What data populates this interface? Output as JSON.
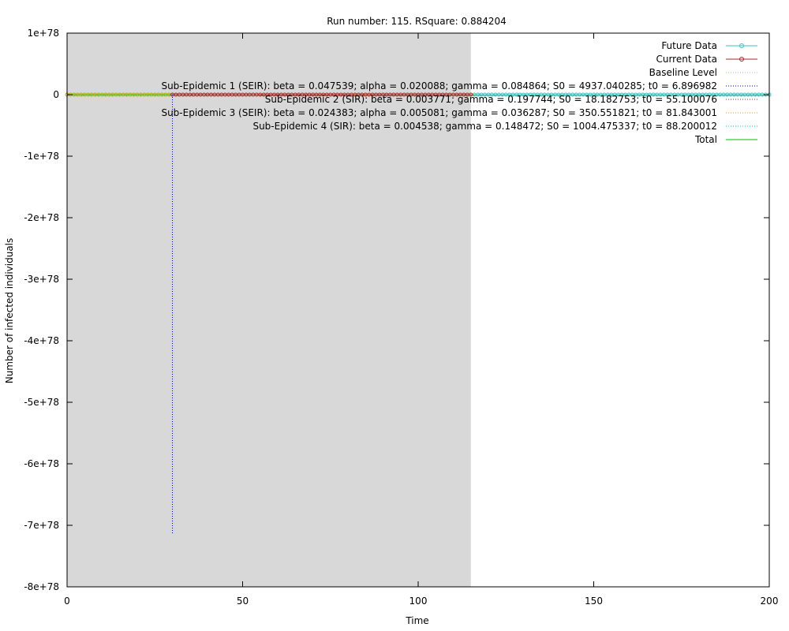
{
  "chart_data": {
    "type": "line",
    "title": "Run number: 115. RSquare: 0.884204",
    "xlabel": "Time",
    "ylabel": "Number of infected individuals",
    "xlim": [
      0,
      200
    ],
    "ylim": [
      -8e+78,
      1e+78
    ],
    "x_ticks": [
      0,
      50,
      100,
      150,
      200
    ],
    "x_tick_labels": [
      "0",
      "50",
      "100",
      "150",
      "200"
    ],
    "y_ticks": [
      1e+78,
      0,
      -1e+78,
      -2e+78,
      -3e+78,
      -4e+78,
      -5e+78,
      -6e+78,
      -7e+78,
      -8e+78
    ],
    "y_tick_labels": [
      "1e+78",
      "0",
      "-1e+78",
      "-2e+78",
      "-3e+78",
      "-4e+78",
      "-5e+78",
      "-6e+78",
      "-7e+78",
      "-8e+78"
    ],
    "shaded_region": {
      "x": [
        0,
        115
      ],
      "color": "#d8d8d8"
    },
    "grid": false,
    "legend_position": "top-right",
    "series": [
      {
        "name": "Future Data",
        "color": "#3fbfbf",
        "style": "line-circle",
        "x_range": [
          116,
          200
        ],
        "y": 0
      },
      {
        "name": "Current Data",
        "color": "#a52a2a",
        "style": "line-circle",
        "x_range": [
          30,
          115
        ],
        "y": 0
      },
      {
        "name": "Baseline Level",
        "color": "#90c090",
        "style": "dotted",
        "x_range": [
          0,
          200
        ],
        "y": 0
      },
      {
        "name": "Sub-Epidemic 1 (SEIR): beta = 0.047539; alpha = 0.020088; gamma = 0.084864; S0 = 4937.040285; t0 = 6.896982",
        "color": "#0000cc",
        "style": "dotted",
        "spike": {
          "x": 30,
          "y": -7.14e+78
        }
      },
      {
        "name": "Sub-Epidemic 2 (SIR): beta = 0.003771; gamma = 0.197744; S0 = 18.182753; t0 = 55.100076",
        "color": "#a52a2a",
        "style": "dotted",
        "x_range": [
          55,
          200
        ],
        "y": 0
      },
      {
        "name": "Sub-Epidemic 3 (SEIR): beta = 0.024383; alpha = 0.005081; gamma = 0.036287; S0 = 350.551821; t0 = 81.843001",
        "color": "#e6a000",
        "style": "dotted",
        "x_range": [
          82,
          200
        ],
        "y": 0
      },
      {
        "name": "Sub-Epidemic 4 (SIR): beta = 0.004538; gamma = 0.148472; S0 = 1004.475337; t0 = 88.200012",
        "color": "#00d0e0",
        "style": "dotted",
        "x_range": [
          88,
          200
        ],
        "y": 0
      },
      {
        "name": "Total",
        "color": "#00c000",
        "style": "line",
        "x_range": [
          0,
          200
        ],
        "y": 0
      }
    ],
    "early_data_markers": {
      "x_range": [
        0,
        30
      ],
      "color": "#b0b000"
    }
  }
}
